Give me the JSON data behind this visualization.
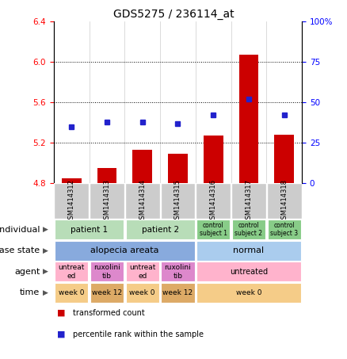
{
  "title": "GDS5275 / 236114_at",
  "samples": [
    "GSM1414312",
    "GSM1414313",
    "GSM1414314",
    "GSM1414315",
    "GSM1414316",
    "GSM1414317",
    "GSM1414318"
  ],
  "red_values": [
    4.85,
    4.95,
    5.13,
    5.09,
    5.27,
    6.07,
    5.28
  ],
  "blue_values": [
    35,
    38,
    38,
    37,
    42,
    52,
    42
  ],
  "ylim_left": [
    4.8,
    6.4
  ],
  "ylim_right": [
    0,
    100
  ],
  "yticks_left": [
    4.8,
    5.2,
    5.6,
    6.0,
    6.4
  ],
  "yticks_right": [
    0,
    25,
    50,
    75,
    100
  ],
  "ytick_labels_right": [
    "0",
    "25",
    "50",
    "75",
    "100%"
  ],
  "hlines": [
    5.2,
    5.6,
    6.0
  ],
  "bar_color": "#cc0000",
  "dot_color": "#2222cc",
  "bar_width": 0.55,
  "sample_bg": "#cccccc",
  "rows": [
    {
      "label": "individual",
      "cells": [
        {
          "text": "patient 1",
          "span": 2,
          "color": "#b8ddb8",
          "fontsize": 7.5
        },
        {
          "text": "patient 2",
          "span": 2,
          "color": "#b8ddb8",
          "fontsize": 7.5
        },
        {
          "text": "control\nsubject 1",
          "span": 1,
          "color": "#88cc88",
          "fontsize": 5.5
        },
        {
          "text": "control\nsubject 2",
          "span": 1,
          "color": "#88cc88",
          "fontsize": 5.5
        },
        {
          "text": "control\nsubject 3",
          "span": 1,
          "color": "#88cc88",
          "fontsize": 5.5
        }
      ]
    },
    {
      "label": "disease state",
      "cells": [
        {
          "text": "alopecia areata",
          "span": 4,
          "color": "#88aadd",
          "fontsize": 8
        },
        {
          "text": "normal",
          "span": 3,
          "color": "#aaccee",
          "fontsize": 8
        }
      ]
    },
    {
      "label": "agent",
      "cells": [
        {
          "text": "untreat\ned",
          "span": 1,
          "color": "#ffb3cc",
          "fontsize": 6.5
        },
        {
          "text": "ruxolini\ntib",
          "span": 1,
          "color": "#dd88cc",
          "fontsize": 6.5
        },
        {
          "text": "untreat\ned",
          "span": 1,
          "color": "#ffb3cc",
          "fontsize": 6.5
        },
        {
          "text": "ruxolini\ntib",
          "span": 1,
          "color": "#dd88cc",
          "fontsize": 6.5
        },
        {
          "text": "untreated",
          "span": 3,
          "color": "#ffb3cc",
          "fontsize": 7
        }
      ]
    },
    {
      "label": "time",
      "cells": [
        {
          "text": "week 0",
          "span": 1,
          "color": "#f5cc88",
          "fontsize": 6.5
        },
        {
          "text": "week 12",
          "span": 1,
          "color": "#ddaa66",
          "fontsize": 6.5
        },
        {
          "text": "week 0",
          "span": 1,
          "color": "#f5cc88",
          "fontsize": 6.5
        },
        {
          "text": "week 12",
          "span": 1,
          "color": "#ddaa66",
          "fontsize": 6.5
        },
        {
          "text": "week 0",
          "span": 3,
          "color": "#f5cc88",
          "fontsize": 6.5
        }
      ]
    }
  ],
  "legend_items": [
    {
      "color": "#cc0000",
      "label": "transformed count"
    },
    {
      "color": "#2222cc",
      "label": "percentile rank within the sample"
    }
  ],
  "title_fontsize": 10,
  "tick_label_fontsize": 7.5,
  "sample_label_fontsize": 6,
  "row_label_fontsize": 8
}
